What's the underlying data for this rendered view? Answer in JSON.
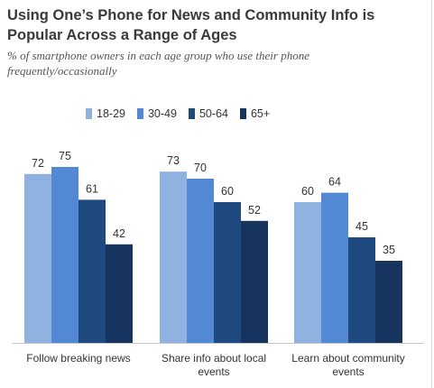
{
  "title_line1": "Using One’s Phone for News and Community Info is",
  "title_line2": "Popular Across a Range of Ages",
  "subtitle_line1": "% of smartphone owners in each age group who use their phone",
  "subtitle_line2": "frequently/occasionally",
  "colors": {
    "18-29": "#8fb2e0",
    "30-49": "#5288d4",
    "50-64": "#1f4a80",
    "65+": "#17345f"
  },
  "chart_data": {
    "type": "bar",
    "title": "Using One’s Phone for News and Community Info is Popular Across a Range of Ages",
    "subtitle": "% of smartphone owners in each age group who use their phone frequently/occasionally",
    "categories": [
      [
        "Follow breaking news"
      ],
      [
        "Share info about local",
        "events"
      ],
      [
        "Learn about community",
        "events"
      ]
    ],
    "series": [
      {
        "name": "18-29",
        "values": [
          72,
          73,
          60
        ]
      },
      {
        "name": "30-49",
        "values": [
          75,
          70,
          64
        ]
      },
      {
        "name": "50-64",
        "values": [
          61,
          60,
          45
        ]
      },
      {
        "name": "65+",
        "values": [
          42,
          52,
          35
        ]
      }
    ],
    "ylim": [
      0,
      100
    ],
    "grid": false,
    "legend_position": "top"
  }
}
